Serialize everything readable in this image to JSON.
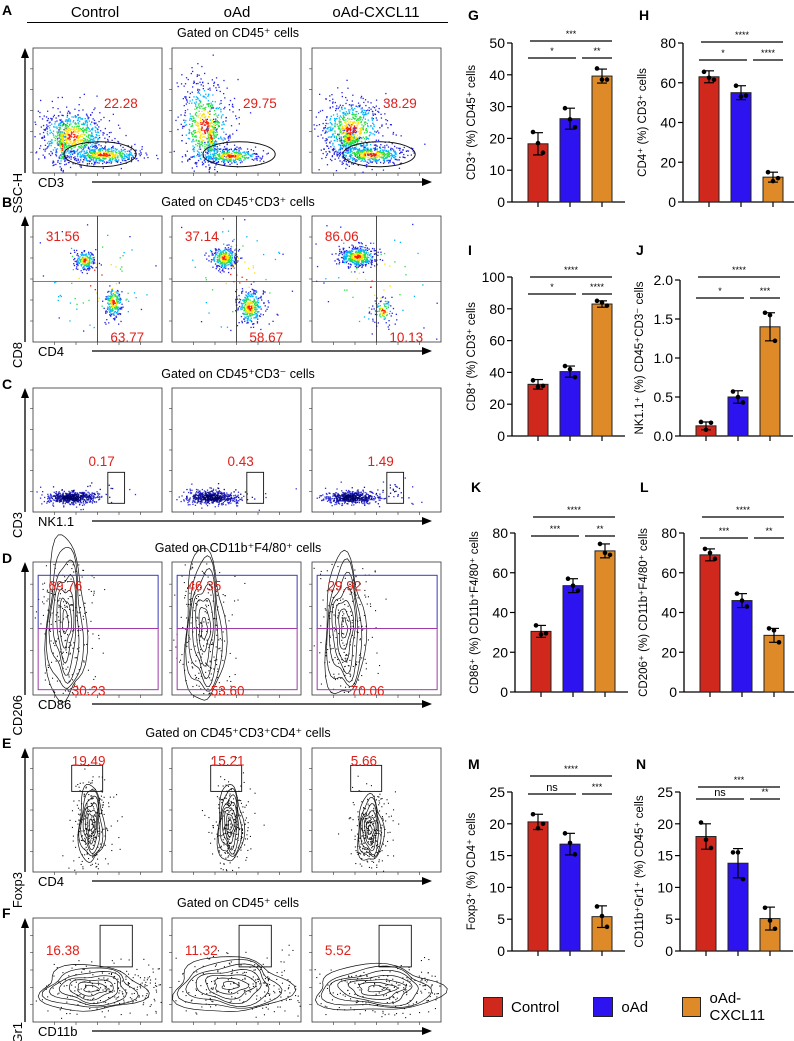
{
  "header": {
    "groups": [
      "Control",
      "oAd",
      "oAd-CXCL11"
    ]
  },
  "flow_panels": [
    {
      "letter": "A",
      "gate_title": "Gated on CD45⁺ cells",
      "x_label": "CD3",
      "y_label": "SSC-H",
      "values": [
        [
          "22.28"
        ],
        [
          "29.75"
        ],
        [
          "38.29"
        ]
      ]
    },
    {
      "letter": "B",
      "gate_title": "Gated on CD45⁺CD3⁺ cells",
      "x_label": "CD4",
      "y_label": "CD8",
      "values": [
        [
          "31.56",
          "63.77"
        ],
        [
          "37.14",
          "58.67"
        ],
        [
          "86.06",
          "10.13"
        ]
      ]
    },
    {
      "letter": "C",
      "gate_title": "Gated on CD45⁺CD3⁻ cells",
      "x_label": "NK1.1",
      "y_label": "CD3",
      "values": [
        [
          "0.17"
        ],
        [
          "0.43"
        ],
        [
          "1.49"
        ]
      ]
    },
    {
      "letter": "D",
      "gate_title": "Gated on CD11b⁺F4/80⁺ cells",
      "x_label": "CD86",
      "y_label": "CD206",
      "values": [
        [
          "69.76",
          "30.23"
        ],
        [
          "46.35",
          "53.60"
        ],
        [
          "29.92",
          "70.06"
        ]
      ]
    },
    {
      "letter": "E",
      "gate_title": "Gated on CD45⁺CD3⁺CD4⁺ cells",
      "x_label": "CD4",
      "y_label": "Foxp3",
      "values": [
        [
          "19.49"
        ],
        [
          "15.21"
        ],
        [
          "5.66"
        ]
      ]
    },
    {
      "letter": "F",
      "gate_title": "Gated on CD45⁺ cells",
      "x_label": "CD11b",
      "y_label": "Gr1",
      "values": [
        [
          "16.38"
        ],
        [
          "11.32"
        ],
        [
          "5.52"
        ]
      ]
    }
  ],
  "legend": {
    "items": [
      {
        "label": "Control",
        "color": "#d0281c"
      },
      {
        "label": "oAd",
        "color": "#2d13f0"
      },
      {
        "label": "oAd-CXCL11",
        "color": "#de8a28"
      }
    ]
  },
  "chart_data": [
    {
      "letter": "G",
      "type": "bar",
      "categories": [
        "Control",
        "oAd",
        "oAd-CXCL11"
      ],
      "ylabel": "CD3⁺ (%) CD45⁺ cells",
      "ylim": [
        0,
        50
      ],
      "yticks": [
        "0",
        "10",
        "20",
        "30",
        "40",
        "50"
      ],
      "values": [
        18.3,
        26.2,
        39.6
      ],
      "sd": [
        3.5,
        3.3,
        2.2
      ],
      "points": [
        [
          22,
          18.5,
          15.5
        ],
        [
          29.5,
          26,
          23.5
        ],
        [
          42,
          38.5,
          38.5
        ]
      ],
      "sig": {
        "1-2": "*",
        "2-3": "**",
        "1-3": "***"
      }
    },
    {
      "letter": "H",
      "type": "bar",
      "categories": [
        "Control",
        "oAd",
        "oAd-CXCL11"
      ],
      "ylabel": "CD4⁺ (%) CD3⁺ cells",
      "ylim": [
        0,
        80
      ],
      "yticks": [
        "0",
        "20",
        "40",
        "60",
        "80"
      ],
      "values": [
        63,
        55,
        12.5
      ],
      "sd": [
        3,
        3.5,
        2.5
      ],
      "points": [
        [
          65.5,
          62.5,
          61.5
        ],
        [
          58.5,
          53,
          53.5
        ],
        [
          15,
          10.5,
          12
        ]
      ],
      "sig": {
        "1-2": "*",
        "2-3": "****",
        "1-3": "****"
      }
    },
    {
      "letter": "I",
      "type": "bar",
      "categories": [
        "Control",
        "oAd",
        "oAd-CXCL11"
      ],
      "ylabel": "CD8⁺ (%) CD3⁺ cells",
      "ylim": [
        0,
        100
      ],
      "yticks": [
        "0",
        "20",
        "40",
        "60",
        "80",
        "100"
      ],
      "values": [
        32.5,
        40.5,
        83
      ],
      "sd": [
        3,
        3.5,
        2
      ],
      "points": [
        [
          35,
          31,
          31.5
        ],
        [
          44,
          42,
          37
        ],
        [
          85,
          84,
          82
        ]
      ],
      "sig": {
        "1-2": "*",
        "2-3": "****",
        "1-3": "****"
      }
    },
    {
      "letter": "J",
      "type": "bar",
      "categories": [
        "Control",
        "oAd",
        "oAd-CXCL11"
      ],
      "ylabel": "NK1.1⁺ (%) CD45⁺CD3⁻ cells",
      "ylim": [
        0,
        2.0
      ],
      "yticks": [
        "0.0",
        "0.5",
        "1.0",
        "1.5",
        "2.0"
      ],
      "values": [
        0.13,
        0.5,
        1.4
      ],
      "sd": [
        0.05,
        0.08,
        0.18
      ],
      "points": [
        [
          0.18,
          0.08,
          0.17
        ],
        [
          0.57,
          0.5,
          0.43
        ],
        [
          1.58,
          1.55,
          1.22
        ]
      ],
      "sig": {
        "1-2": "*",
        "2-3": "***",
        "1-3": "****"
      }
    },
    {
      "letter": "K",
      "type": "bar",
      "categories": [
        "Control",
        "oAd",
        "oAd-CXCL11"
      ],
      "ylabel": "CD86⁺ (%) CD11b⁺F4/80⁺ cells",
      "ylim": [
        0,
        80
      ],
      "yticks": [
        "0",
        "20",
        "40",
        "60",
        "80"
      ],
      "values": [
        30.5,
        53.5,
        71
      ],
      "sd": [
        3,
        3.5,
        3.5
      ],
      "points": [
        [
          33.5,
          29,
          29.5
        ],
        [
          57,
          53.5,
          51
        ],
        [
          74.5,
          70,
          69
        ]
      ],
      "sig": {
        "1-2": "***",
        "2-3": "**",
        "1-3": "****"
      }
    },
    {
      "letter": "L",
      "type": "bar",
      "categories": [
        "Control",
        "oAd",
        "oAd-CXCL11"
      ],
      "ylabel": "CD206⁺ (%) CD11b⁺F4/80⁺ cells",
      "ylim": [
        0,
        80
      ],
      "yticks": [
        "0",
        "20",
        "40",
        "60",
        "80"
      ],
      "values": [
        69,
        46,
        28.5
      ],
      "sd": [
        3,
        3.5,
        3.5
      ],
      "points": [
        [
          72,
          70,
          67
        ],
        [
          49.5,
          46,
          43
        ],
        [
          32,
          31,
          25
        ]
      ],
      "sig": {
        "1-2": "***",
        "2-3": "**",
        "1-3": "****"
      }
    },
    {
      "letter": "M",
      "type": "bar",
      "categories": [
        "Control",
        "oAd",
        "oAd-CXCL11"
      ],
      "ylabel": "Foxp3⁺ (%) CD4⁺ cells",
      "ylim": [
        0,
        25
      ],
      "yticks": [
        "0",
        "5",
        "10",
        "15",
        "20",
        "25"
      ],
      "values": [
        20.3,
        16.8,
        5.4
      ],
      "sd": [
        1.2,
        1.7,
        1.7
      ],
      "points": [
        [
          21.5,
          19.3,
          20
        ],
        [
          18.5,
          17,
          15.2
        ],
        [
          7,
          5.5,
          3.8
        ]
      ],
      "sig": {
        "1-2": "ns",
        "2-3": "***",
        "1-3": "****"
      }
    },
    {
      "letter": "N",
      "type": "bar",
      "categories": [
        "Control",
        "oAd",
        "oAd-CXCL11"
      ],
      "ylabel": "CD11b⁺Gr1⁺ (%) CD45⁺ cells",
      "ylim": [
        0,
        25
      ],
      "yticks": [
        "0",
        "5",
        "10",
        "15",
        "20",
        "25"
      ],
      "values": [
        18,
        13.8,
        5.1
      ],
      "sd": [
        2,
        2.3,
        1.8
      ],
      "points": [
        [
          20.2,
          17.5,
          16.2
        ],
        [
          15.5,
          15.5,
          11.3
        ],
        [
          6.8,
          4.8,
          3.5
        ]
      ],
      "sig": {
        "1-2": "ns",
        "2-3": "**",
        "1-3": "***"
      }
    }
  ]
}
